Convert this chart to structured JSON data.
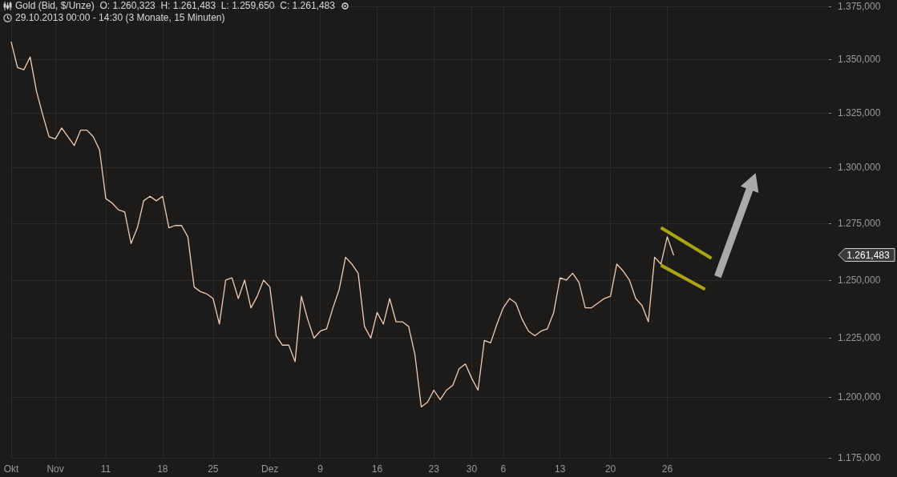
{
  "chart_data": {
    "type": "line",
    "title": "Gold (Bid, $/Unze)  O: 1.260,323  H: 1.261,483  L: 1.259,650  C: 1.261,483",
    "subtitle": "29.10.2013 00:00 - 14:30 (3 Monate, 15 Minuten)",
    "categories": [
      "Okt",
      null,
      null,
      null,
      null,
      null,
      null,
      "Nov",
      null,
      null,
      null,
      null,
      null,
      null,
      null,
      "11",
      null,
      null,
      null,
      null,
      null,
      null,
      null,
      null,
      "18",
      null,
      null,
      null,
      null,
      null,
      null,
      null,
      "25",
      null,
      null,
      null,
      null,
      null,
      null,
      null,
      null,
      "Dez",
      null,
      null,
      null,
      null,
      null,
      null,
      null,
      "9",
      null,
      null,
      null,
      null,
      null,
      null,
      null,
      null,
      "16",
      null,
      null,
      null,
      null,
      null,
      null,
      null,
      null,
      "23",
      null,
      null,
      null,
      null,
      null,
      "30",
      null,
      null,
      null,
      null,
      "6",
      null,
      null,
      null,
      null,
      null,
      null,
      null,
      null,
      "13",
      null,
      null,
      null,
      null,
      null,
      null,
      null,
      "20",
      null,
      null,
      null,
      null,
      null,
      null,
      null,
      null,
      "26",
      null,
      null,
      null,
      null,
      null,
      null,
      null,
      null,
      null,
      null,
      null,
      null,
      null,
      null,
      null,
      null,
      null,
      null,
      null,
      null,
      null,
      null,
      null,
      null,
      null,
      null
    ],
    "series": [
      {
        "color": "#f0cdb8",
        "values": [
          1358,
          1346,
          1345,
          1351,
          1335,
          1324,
          1314,
          1313,
          1318,
          1314,
          1310,
          1317,
          1317,
          1314,
          1308,
          1286,
          1284,
          1281,
          1280,
          1266,
          1273,
          1285,
          1287,
          1285,
          1287,
          1273,
          1274,
          1274,
          1269,
          1247,
          1245,
          1244,
          1242,
          1231,
          1250,
          1251,
          1242,
          1250,
          1238,
          1243,
          1250,
          1247,
          1226,
          1222,
          1222,
          1215,
          1243,
          1233,
          1225,
          1228,
          1229,
          1238,
          1246,
          1260,
          1257,
          1253,
          1230,
          1225,
          1236,
          1231,
          1242,
          1232,
          1232,
          1230,
          1218,
          1196,
          1198,
          1203,
          1199,
          1203,
          1205,
          1212,
          1214,
          1208,
          1203,
          1224,
          1223,
          1231,
          1238,
          1242,
          1240,
          1233,
          1228,
          1226,
          1228,
          1229,
          1236,
          1251,
          1250,
          1253,
          1249,
          1238,
          1238,
          1240,
          1242,
          1243,
          1257,
          1254,
          1250,
          1242,
          1239,
          1232,
          1260,
          1257,
          1269,
          1261,
          null,
          null,
          null,
          null,
          null,
          null,
          null,
          null,
          null,
          null,
          null,
          null,
          null,
          null,
          null,
          null,
          null,
          null,
          null,
          null,
          null,
          null,
          null,
          null,
          null
        ]
      }
    ],
    "ylim": [
      1175,
      1375
    ],
    "yticks": [
      {
        "value": 1175,
        "label": "1.175,000"
      },
      {
        "value": 1200,
        "label": "1.200,000"
      },
      {
        "value": 1225,
        "label": "1.225,000"
      },
      {
        "value": 1250,
        "label": "1.250,000"
      },
      {
        "value": 1275,
        "label": "1.275,000"
      },
      {
        "value": 1300,
        "label": "1.300,000"
      },
      {
        "value": 1325,
        "label": "1.325,000"
      },
      {
        "value": 1350,
        "label": "1.350,000"
      },
      {
        "value": 1375,
        "label": "1.375,000"
      }
    ],
    "log": true,
    "grid": true,
    "marker": "none",
    "line_style": "solid",
    "annotations": [
      "1.261,483"
    ]
  }
}
